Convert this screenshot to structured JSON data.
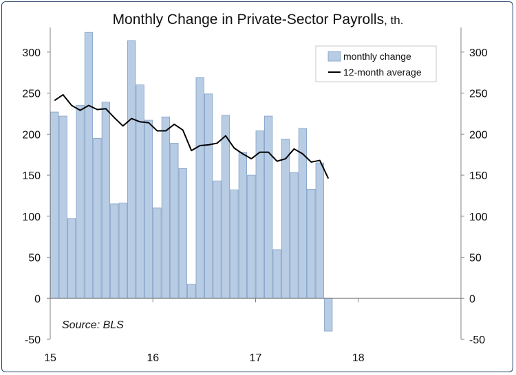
{
  "chart_data": {
    "type": "bar",
    "title": "Monthly Change in Private-Sector Payrolls",
    "title_unit": ", th.",
    "source": "Source: BLS",
    "ylim": [
      -50,
      330
    ],
    "y_ticks": [
      "-50",
      "0",
      "50",
      "100",
      "150",
      "200",
      "250",
      "300"
    ],
    "y_tick_values": [
      -50,
      0,
      50,
      100,
      150,
      200,
      250,
      300
    ],
    "x_tick_labels": [
      "15",
      "16",
      "17",
      "18"
    ],
    "x_tick_month_index": [
      0,
      12,
      24,
      36
    ],
    "x_range_months": [
      0,
      48
    ],
    "grid": false,
    "legend_position": "top-right",
    "colors": {
      "bar_fill": "#b8cce4",
      "bar_stroke": "#7f9fc7",
      "line": "#000000",
      "axis": "#808080"
    },
    "series": [
      {
        "name": "monthly change",
        "type": "bar",
        "start_month": "2015-01",
        "values": [
          227,
          222,
          97,
          235,
          324,
          195,
          239,
          115,
          116,
          314,
          260,
          217,
          110,
          221,
          189,
          158,
          17,
          269,
          249,
          143,
          223,
          132,
          178,
          150,
          204,
          222,
          59,
          194,
          153,
          207,
          133,
          165,
          -40
        ]
      },
      {
        "name": "12-month average",
        "type": "line",
        "start_month": "2015-01",
        "values": [
          241,
          248,
          235,
          229,
          235,
          230,
          231,
          220,
          210,
          219,
          215,
          214,
          204,
          204,
          212,
          205,
          180,
          186,
          187,
          189,
          198,
          183,
          176,
          170,
          178,
          178,
          167,
          170,
          182,
          176,
          166,
          168,
          146
        ]
      }
    ]
  }
}
